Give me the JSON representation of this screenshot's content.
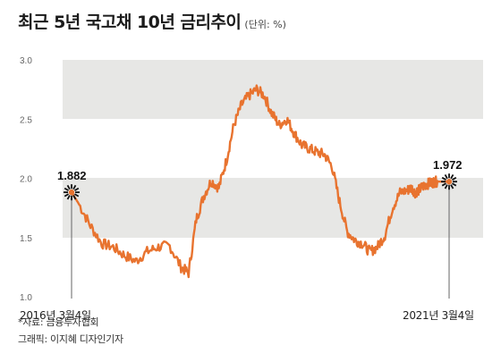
{
  "header": {
    "title": "최근 5년 국고채 10년 금리추이",
    "unit": "(단위: %)"
  },
  "chart_data": {
    "type": "line",
    "ylim": [
      1.0,
      3.0
    ],
    "yticks": [
      "3.0",
      "2.5",
      "2.0",
      "1.5",
      "1.0"
    ],
    "x_start_label": "2016년 3월4일",
    "x_end_label": "2021년 3월4일",
    "series": [
      {
        "color": "#e8732f",
        "x": [
          0,
          0.02,
          0.05,
          0.08,
          0.11,
          0.14,
          0.17,
          0.2,
          0.23,
          0.26,
          0.29,
          0.31,
          0.33,
          0.35,
          0.37,
          0.39,
          0.41,
          0.43,
          0.45,
          0.47,
          0.49,
          0.51,
          0.53,
          0.55,
          0.57,
          0.59,
          0.61,
          0.63,
          0.65,
          0.67,
          0.69,
          0.71,
          0.73,
          0.75,
          0.77,
          0.79,
          0.81,
          0.83,
          0.85,
          0.87,
          0.89,
          0.9,
          0.91,
          0.92,
          0.93,
          0.94,
          0.95,
          0.96,
          0.97,
          0.98,
          1.0
        ],
        "values": [
          1.882,
          1.78,
          1.6,
          1.45,
          1.42,
          1.35,
          1.3,
          1.38,
          1.42,
          1.43,
          1.25,
          1.2,
          1.65,
          1.85,
          1.98,
          1.92,
          2.15,
          2.45,
          2.62,
          2.7,
          2.75,
          2.7,
          2.55,
          2.45,
          2.5,
          2.38,
          2.28,
          2.25,
          2.22,
          2.2,
          2.1,
          1.8,
          1.55,
          1.48,
          1.45,
          1.38,
          1.42,
          1.52,
          1.75,
          1.88,
          1.9,
          1.92,
          1.88,
          1.9,
          1.93,
          1.95,
          1.96,
          1.97,
          1.972,
          1.972,
          1.972
        ]
      }
    ],
    "annotations": [
      {
        "label": "1.882",
        "value": 1.882,
        "x": 0
      },
      {
        "label": "1.972",
        "value": 1.972,
        "x": 1
      }
    ]
  },
  "footer": {
    "source": "*자료: 금융투자협회",
    "credit": "그래픽: 이지혜 디자인기자"
  }
}
